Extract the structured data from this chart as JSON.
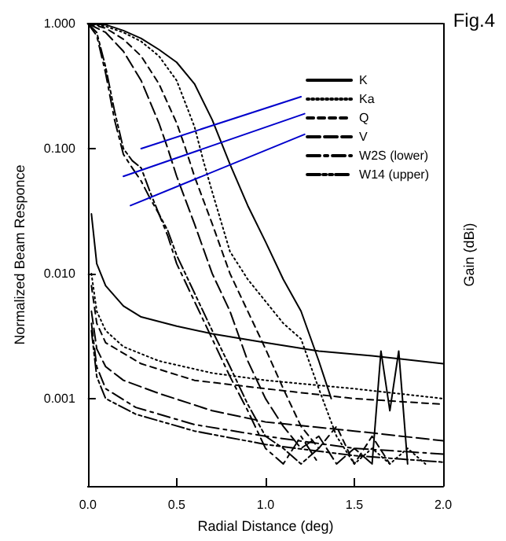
{
  "chart_data": {
    "type": "line",
    "title": "Fig.4",
    "xlabel": "Radial Distance (deg)",
    "ylabel": "Normalized Beam Responce",
    "y2label": "Gain (dBi)",
    "log": "y",
    "xlim": [
      0,
      2.0
    ],
    "xticks": [
      {
        "value": 0,
        "label": "0.0"
      },
      {
        "value": 0.5,
        "label": "0.5"
      },
      {
        "value": 1,
        "label": "1.0"
      },
      {
        "value": 1.5,
        "label": "1.5"
      },
      {
        "value": 2,
        "label": "2.0"
      }
    ],
    "ylim": [
      0.0002,
      1
    ],
    "yticks": [
      {
        "value": 0.001,
        "label": "0.001"
      },
      {
        "value": 0.01,
        "label": "0.010"
      },
      {
        "value": 0.1,
        "label": "0.100"
      },
      {
        "value": 1,
        "label": "1.000"
      }
    ],
    "grid": false,
    "legend": "top right",
    "series": [
      {
        "name": "K",
        "color": "#000000",
        "line_style": "solid",
        "x": [
          0,
          0.1,
          0.2,
          0.3,
          0.4,
          0.5,
          0.6,
          0.7,
          0.8,
          0.9,
          1.0,
          1.1,
          1.2,
          1.3,
          1.37,
          1.42,
          1.5,
          1.6,
          1.65,
          1.7,
          1.75,
          1.8
        ],
        "values": [
          1,
          0.98,
          0.88,
          0.76,
          0.62,
          0.49,
          0.33,
          0.17,
          0.075,
          0.035,
          0.018,
          0.009,
          0.005,
          0.002,
          0.001,
          null,
          null,
          0.0003,
          0.0024,
          0.0008,
          0.0024,
          0.0003
        ]
      },
      {
        "name": "Ka",
        "color": "#000000",
        "line_style": "dotted",
        "x": [
          0,
          0.1,
          0.2,
          0.3,
          0.4,
          0.5,
          0.6,
          0.65,
          0.7,
          0.8,
          0.9,
          1.0,
          1.1,
          1.2,
          1.3,
          1.4,
          1.5,
          1.6,
          1.7,
          1.8,
          1.9
        ],
        "values": [
          1,
          0.95,
          0.85,
          0.72,
          0.55,
          0.35,
          0.15,
          0.08,
          0.045,
          0.015,
          0.009,
          0.006,
          0.004,
          0.003,
          0.0012,
          0.0005,
          0.0003,
          0.0004,
          0.0003,
          0.0004,
          0.0003
        ]
      },
      {
        "name": "Q",
        "color": "#000000",
        "line_style": "dashed",
        "x": [
          0,
          0.1,
          0.2,
          0.3,
          0.4,
          0.5,
          0.55,
          0.6,
          0.7,
          0.8,
          0.9,
          1.0,
          1.1,
          1.2,
          1.3,
          1.4,
          1.5,
          1.6,
          1.7
        ],
        "values": [
          1,
          0.92,
          0.75,
          0.55,
          0.33,
          0.16,
          0.1,
          0.06,
          0.025,
          0.01,
          0.005,
          0.0025,
          0.0012,
          0.0006,
          0.0004,
          0.0006,
          0.0003,
          0.0005,
          0.0003
        ]
      },
      {
        "name": "V",
        "color": "#000000",
        "line_style": "longdash",
        "x": [
          0,
          0.1,
          0.2,
          0.3,
          0.4,
          0.45,
          0.5,
          0.6,
          0.7,
          0.8,
          0.9,
          1.0,
          1.1,
          1.2,
          1.3,
          1.4,
          1.5,
          1.6
        ],
        "values": [
          1,
          0.85,
          0.6,
          0.35,
          0.16,
          0.1,
          0.06,
          0.025,
          0.01,
          0.005,
          0.002,
          0.001,
          0.0006,
          0.0004,
          0.0005,
          0.0003,
          0.0004,
          0.0003
        ]
      },
      {
        "name": "W2S (lower)",
        "color": "#000000",
        "line_style": "dashdot",
        "x": [
          0,
          0.05,
          0.1,
          0.15,
          0.2,
          0.25,
          0.3,
          0.35,
          0.4,
          0.45,
          0.5,
          0.6,
          0.7,
          0.8,
          0.9,
          1.0,
          1.1,
          1.2,
          1.3
        ],
        "values": [
          1,
          0.8,
          0.4,
          0.17,
          0.09,
          0.07,
          0.055,
          0.04,
          0.03,
          0.02,
          0.012,
          0.006,
          0.003,
          0.0015,
          0.0008,
          0.0004,
          0.0003,
          0.0005,
          0.0003
        ]
      },
      {
        "name": "W14 (upper)",
        "color": "#000000",
        "line_style": "dashdotdot",
        "x": [
          0,
          0.05,
          0.1,
          0.15,
          0.2,
          0.25,
          0.3,
          0.35,
          0.4,
          0.45,
          0.5,
          0.6,
          0.7,
          0.8,
          0.9,
          1.0,
          1.1,
          1.2,
          1.3
        ],
        "values": [
          1,
          0.85,
          0.45,
          0.2,
          0.1,
          0.08,
          0.07,
          0.045,
          0.03,
          0.022,
          0.014,
          0.007,
          0.0035,
          0.0018,
          0.0009,
          0.0005,
          0.0004,
          0.0003,
          0.0004
        ]
      },
      {
        "color": "#000000",
        "line_style": "solid",
        "x": [
          0.02,
          0.05,
          0.1,
          0.2,
          0.3,
          0.5,
          0.7,
          1.0,
          1.3,
          1.6,
          2.0
        ],
        "values": [
          0.03,
          0.012,
          0.008,
          0.0055,
          0.0045,
          0.0038,
          0.0033,
          0.0028,
          0.0024,
          0.0022,
          0.0019
        ]
      },
      {
        "color": "#000000",
        "line_style": "dotted",
        "x": [
          0.02,
          0.05,
          0.1,
          0.2,
          0.4,
          0.7,
          1.0,
          1.5,
          2.0
        ],
        "values": [
          0.01,
          0.005,
          0.0035,
          0.0026,
          0.002,
          0.0016,
          0.0014,
          0.0012,
          0.001
        ]
      },
      {
        "color": "#000000",
        "line_style": "dashed",
        "x": [
          0.02,
          0.05,
          0.1,
          0.3,
          0.6,
          1.0,
          1.5,
          2.0
        ],
        "values": [
          0.008,
          0.004,
          0.0028,
          0.0019,
          0.0014,
          0.0012,
          0.001,
          0.0009
        ]
      },
      {
        "color": "#000000",
        "line_style": "longdash",
        "x": [
          0.02,
          0.05,
          0.1,
          0.2,
          0.4,
          0.7,
          1.0,
          1.5,
          2.0
        ],
        "values": [
          0.005,
          0.0025,
          0.0018,
          0.0014,
          0.0011,
          0.0008,
          0.00065,
          0.00055,
          0.00046
        ]
      },
      {
        "color": "#000000",
        "line_style": "dashdot",
        "x": [
          0.02,
          0.05,
          0.1,
          0.27,
          0.6,
          1.0,
          1.5,
          2.0
        ],
        "values": [
          0.004,
          0.0018,
          0.0012,
          0.00085,
          0.00062,
          0.0005,
          0.0004,
          0.00036
        ]
      },
      {
        "color": "#000000",
        "line_style": "dashdotdot",
        "x": [
          0.02,
          0.05,
          0.1,
          0.27,
          0.6,
          1.0,
          1.5,
          2.0
        ],
        "values": [
          0.0035,
          0.0015,
          0.001,
          0.00075,
          0.00055,
          0.00043,
          0.00035,
          0.00031
        ]
      },
      {
        "color": "#0000cc",
        "line_style": "solid",
        "x": [
          0.3,
          1.2
        ],
        "values": [
          0.1,
          0.26
        ]
      },
      {
        "color": "#0000cc",
        "line_style": "solid",
        "x": [
          0.2,
          1.22
        ],
        "values": [
          0.06,
          0.19
        ]
      },
      {
        "color": "#0000cc",
        "line_style": "solid",
        "x": [
          0.24,
          1.22
        ],
        "values": [
          0.035,
          0.13
        ]
      }
    ]
  }
}
